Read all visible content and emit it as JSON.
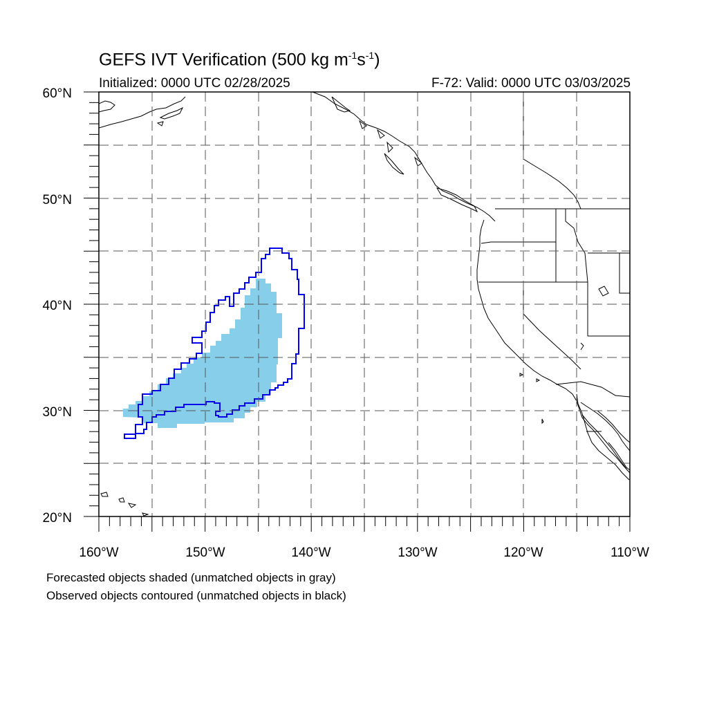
{
  "title": {
    "main": "GEFS IVT Verification (500 kg m",
    "sup1": "-1",
    "mid": "s",
    "sup2": "-1",
    "end": ")"
  },
  "initialized": "Initialized: 0000 UTC 02/28/2025",
  "valid": "F-72: Valid: 0000 UTC 03/03/2025",
  "axes": {
    "lat_labels": [
      "60°N",
      "50°N",
      "40°N",
      "30°N",
      "20°N"
    ],
    "lon_labels": [
      "160°W",
      "150°W",
      "140°W",
      "130°W",
      "120°W",
      "110°W"
    ]
  },
  "notes": [
    "Forecasted objects shaded (unmatched objects in gray)",
    "Observed objects contoured (unmatched objects in black)"
  ],
  "colors": {
    "forecast_fill": "#87CEEB",
    "observed_contour": "#0000EE",
    "coast": "#000000",
    "grid": "#555555"
  },
  "map_extent": {
    "lon_min": -160,
    "lon_max": -110,
    "lat_min": 20,
    "lat_max": 60
  }
}
